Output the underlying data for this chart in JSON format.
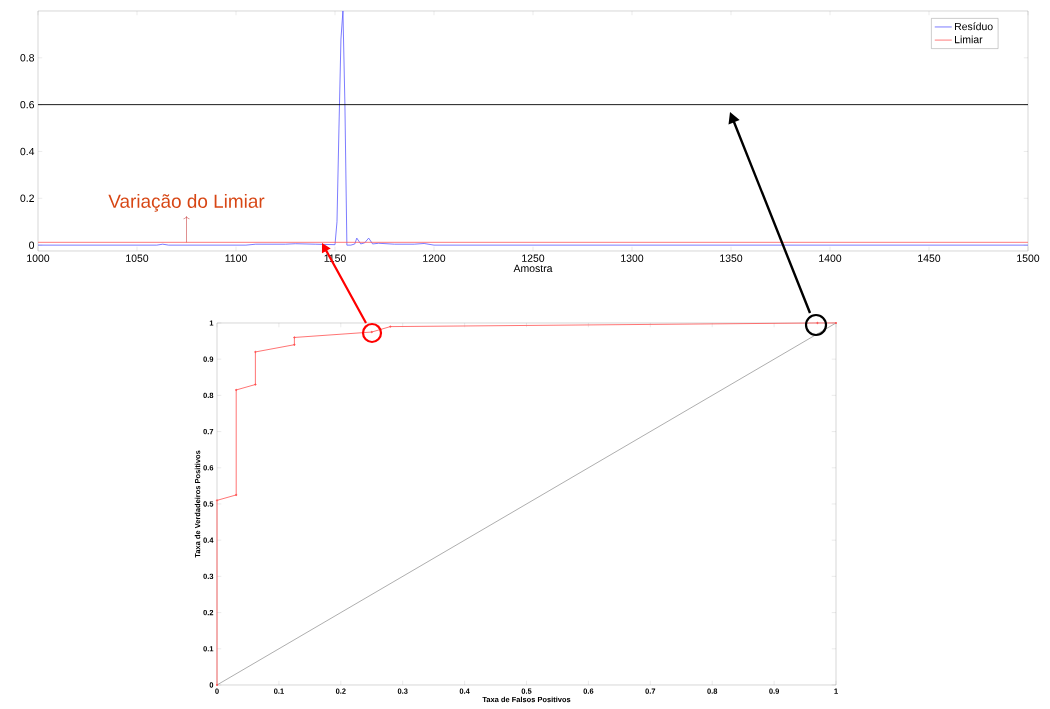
{
  "chart_data": [
    {
      "type": "line",
      "xlabel": "Amostra",
      "xlim": [
        1000,
        1500
      ],
      "ylim": [
        -0.025,
        1
      ],
      "xticks": [
        1000,
        1050,
        1100,
        1150,
        1200,
        1250,
        1300,
        1350,
        1400,
        1450,
        1500
      ],
      "yticks": [
        0,
        0.2,
        0.4,
        0.6,
        0.8
      ],
      "legend": "top right",
      "series": [
        {
          "name": "Resíduo",
          "color": "#5a5aff",
          "x": [
            1000,
            1060,
            1063,
            1066,
            1105,
            1110,
            1125,
            1130,
            1140,
            1150,
            1151,
            1152,
            1153,
            1154,
            1155,
            1156,
            1158,
            1160,
            1161,
            1163,
            1165,
            1167,
            1169,
            1172,
            1180,
            1190,
            1195,
            1200,
            1500
          ],
          "values": [
            0,
            0,
            0.004,
            0,
            0,
            0.004,
            0.004,
            0.006,
            0.004,
            0.002,
            0.1,
            0.5,
            0.88,
            1,
            0.6,
            0,
            0,
            0.005,
            0.03,
            0.005,
            0.01,
            0.03,
            0.005,
            0.008,
            0.004,
            0.004,
            0.007,
            0,
            0
          ]
        },
        {
          "name": "Limiar",
          "color": "#ff5a5a",
          "x": [
            1000,
            1500
          ],
          "values": [
            0.012,
            0.012
          ]
        }
      ],
      "ref_lines": [
        {
          "axis": "y",
          "value": 0.6,
          "color": "#000000"
        }
      ],
      "annotations": [
        {
          "text": "Variação do Limiar",
          "x": 1075,
          "y": 0.012
        }
      ]
    },
    {
      "type": "line",
      "xlabel": "Taxa de Falsos Positivos",
      "ylabel": "Taxa de Verdadeiros Positivos",
      "xlim": [
        0,
        1
      ],
      "ylim": [
        0,
        1
      ],
      "xticks": [
        0,
        0.1,
        0.2,
        0.3,
        0.4,
        0.5,
        0.6,
        0.7,
        0.8,
        0.9,
        1
      ],
      "yticks": [
        0,
        0.1,
        0.2,
        0.3,
        0.4,
        0.5,
        0.6,
        0.7,
        0.8,
        0.9,
        1
      ],
      "series": [
        {
          "color": "#ff5050",
          "marker": "circle",
          "x": [
            0,
            0,
            0.031,
            0.031,
            0.062,
            0.062,
            0.125,
            0.125,
            0.25,
            0.28,
            0.97,
            1
          ],
          "values": [
            0,
            0.51,
            0.525,
            0.815,
            0.83,
            0.92,
            0.94,
            0.96,
            0.975,
            0.99,
            1,
            1
          ]
        },
        {
          "color": "#999999",
          "x": [
            0,
            1
          ],
          "values": [
            0,
            1
          ]
        }
      ]
    }
  ]
}
